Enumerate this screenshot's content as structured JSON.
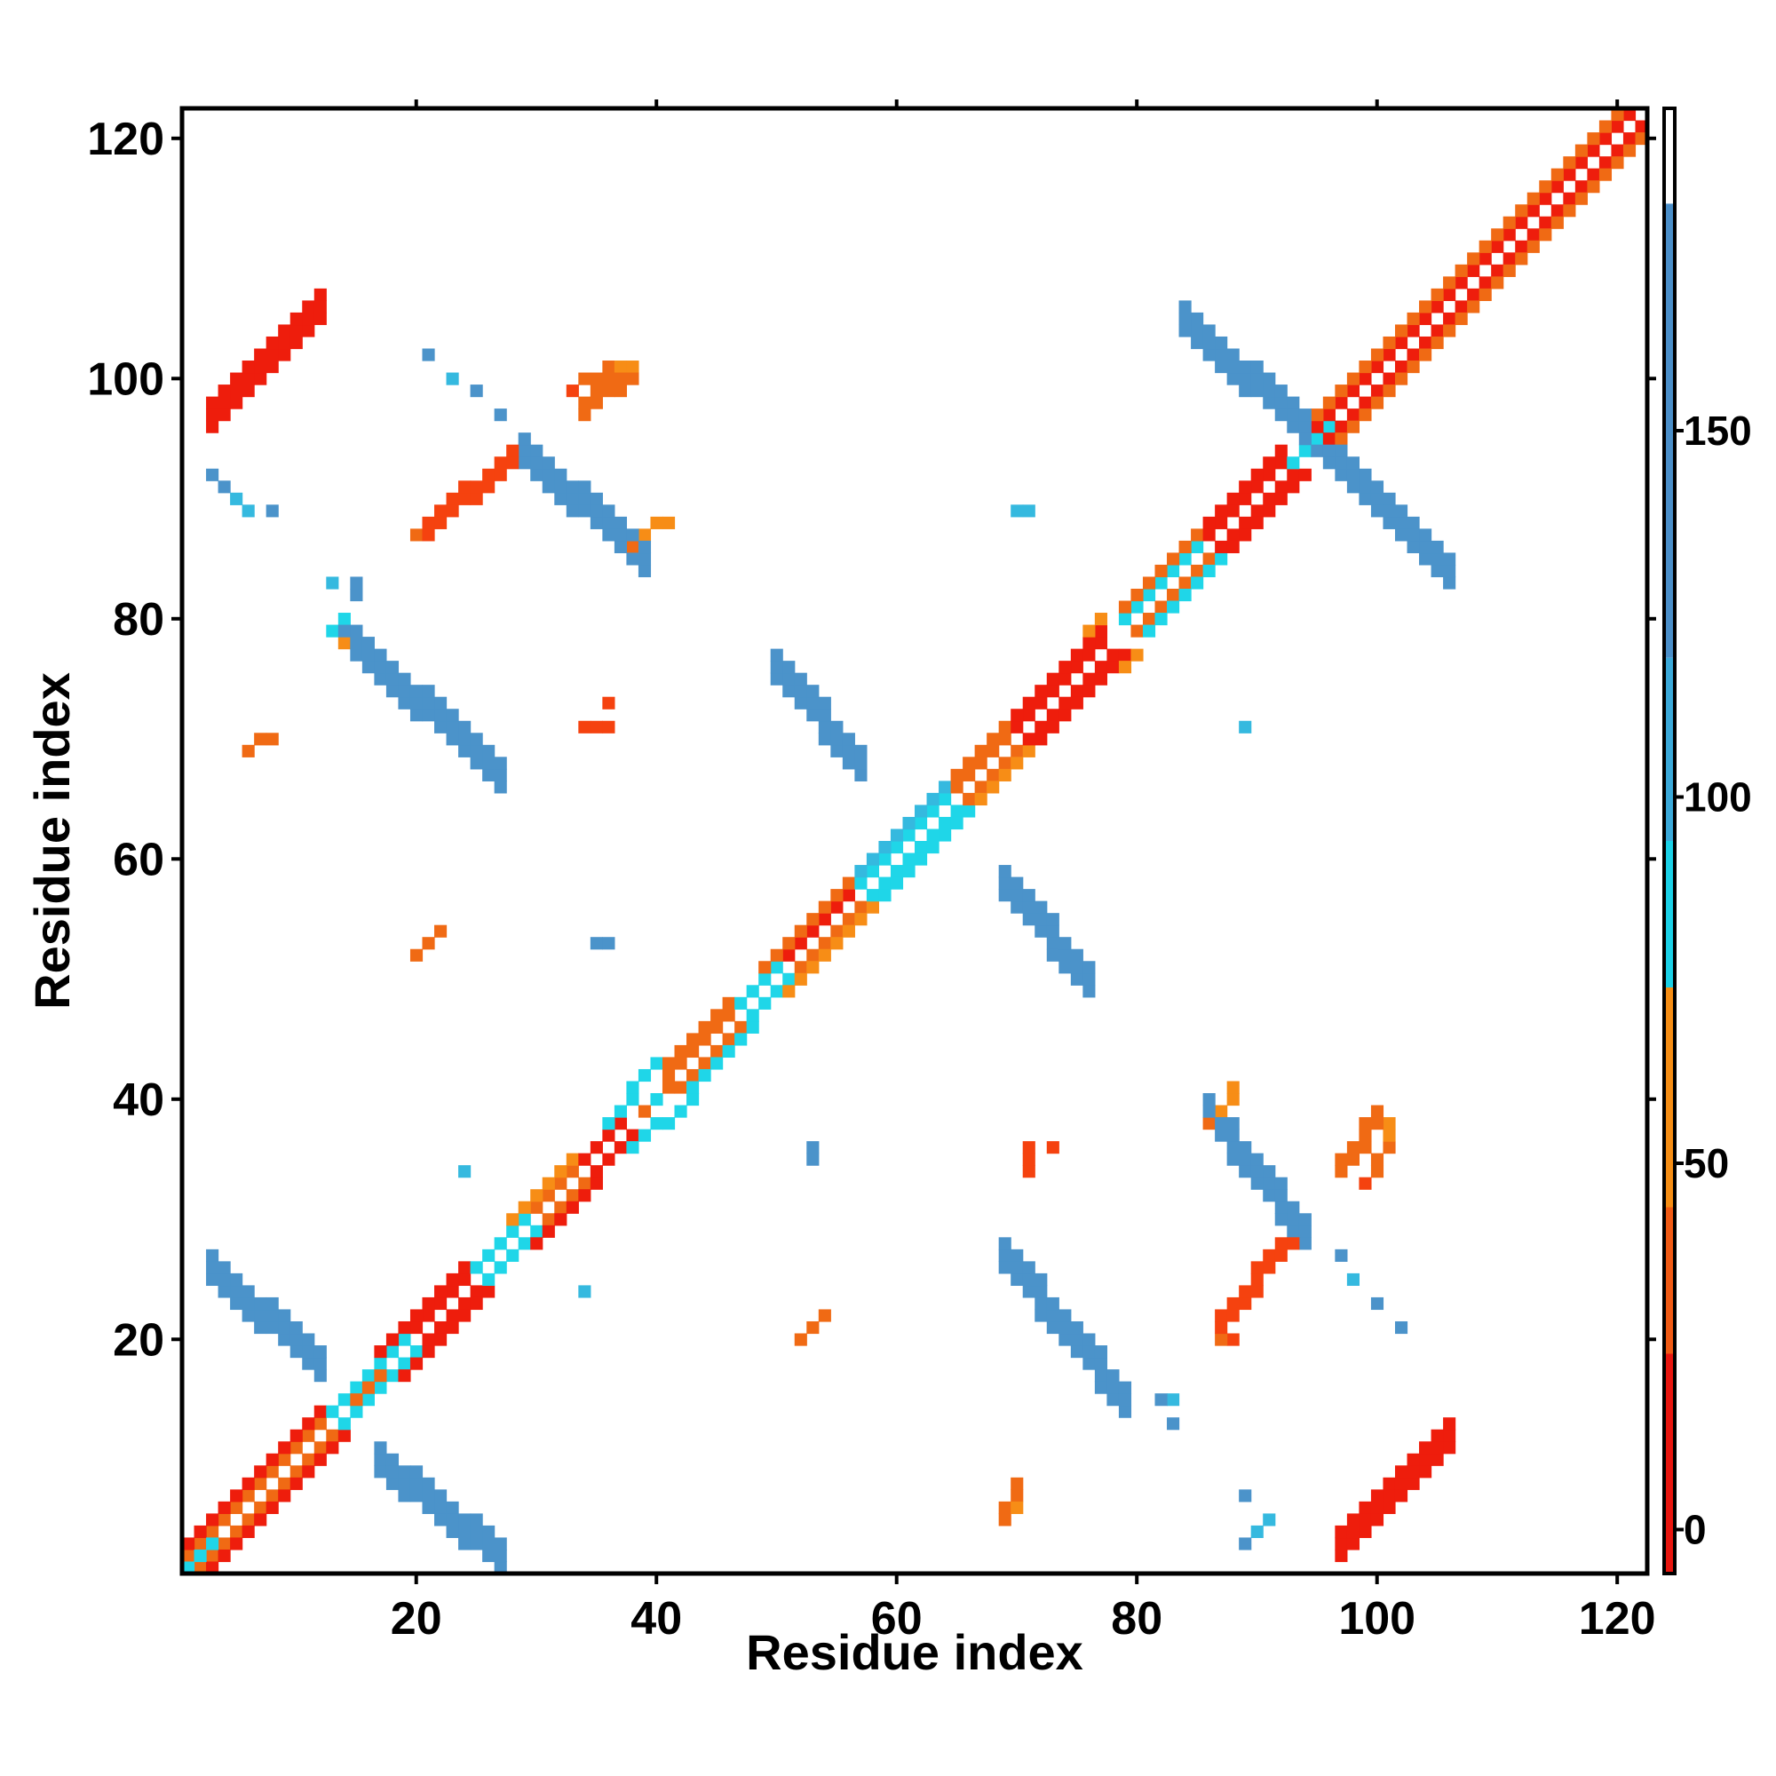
{
  "chart_data": {
    "type": "heatmap",
    "title": "",
    "xlabel": "Residue index",
    "ylabel": "Residue index",
    "xlim": [
      0.5,
      122.5
    ],
    "ylim": [
      0.5,
      122.5
    ],
    "x_ticks": [
      20,
      40,
      60,
      80,
      100,
      120
    ],
    "y_ticks": [
      20,
      40,
      60,
      80,
      100,
      120
    ],
    "colorbar": {
      "ticks": [
        0,
        50,
        100,
        150
      ],
      "range": [
        -6,
        194
      ],
      "bands": [
        {
          "from": -6,
          "to": 24,
          "color": "#e8160f"
        },
        {
          "from": 24,
          "to": 44,
          "color": "#f05a14"
        },
        {
          "from": 44,
          "to": 74,
          "color": "#f58d14"
        },
        {
          "from": 74,
          "to": 94,
          "color": "#1ad0e6"
        },
        {
          "from": 94,
          "to": 119,
          "color": "#3aa8d8"
        },
        {
          "from": 119,
          "to": 181,
          "color": "#4a8ec8"
        },
        {
          "from": 181,
          "to": 194,
          "color": "#ffffff"
        }
      ]
    },
    "category_colors": {
      "R": "#ee1d0c",
      "r": "#f5420f",
      "O": "#f06a14",
      "o": "#f78d16",
      "C": "#1fd6e8",
      "c": "#35b9df",
      "B": "#4b93ca"
    },
    "segments": [
      {
        "i": [
          1,
          12
        ],
        "j": [
          2,
          13
        ],
        "v": "O"
      },
      {
        "i": [
          1,
          12
        ],
        "j": [
          3,
          14
        ],
        "v": "R"
      },
      {
        "i": [
          2,
          13
        ],
        "j": [
          1,
          12
        ],
        "v": "O"
      },
      {
        "i": [
          3,
          14
        ],
        "j": [
          1,
          12
        ],
        "v": "R"
      },
      {
        "i": [
          1,
          3
        ],
        "j": [
          1,
          3
        ],
        "v": "C"
      },
      {
        "i": [
          13,
          19
        ],
        "j": [
          14,
          20
        ],
        "v": "C"
      },
      {
        "i": [
          14,
          20
        ],
        "j": [
          13,
          19
        ],
        "v": "C"
      },
      {
        "i": [
          15,
          17
        ],
        "j": [
          15,
          17
        ],
        "v": "O"
      },
      {
        "i": [
          17,
          24
        ],
        "j": [
          18,
          25
        ],
        "v": "R"
      },
      {
        "i": [
          17,
          24
        ],
        "j": [
          19,
          26
        ],
        "v": "R"
      },
      {
        "i": [
          18,
          25
        ],
        "j": [
          17,
          24
        ],
        "v": "R"
      },
      {
        "i": [
          19,
          26
        ],
        "j": [
          17,
          24
        ],
        "v": "R"
      },
      {
        "i": [
          25,
          29
        ],
        "j": [
          26,
          30
        ],
        "v": "C"
      },
      {
        "i": [
          26,
          30
        ],
        "j": [
          25,
          29
        ],
        "v": "C"
      },
      {
        "i": [
          28,
          33
        ],
        "j": [
          29,
          34
        ],
        "v": "O"
      },
      {
        "i": [
          28,
          33
        ],
        "j": [
          30,
          35
        ],
        "v": "o"
      },
      {
        "i": [
          29,
          34
        ],
        "j": [
          28,
          33
        ],
        "v": "O"
      },
      {
        "i": [
          30,
          35
        ],
        "j": [
          28,
          33
        ],
        "v": "R"
      },
      {
        "i": [
          33,
          37
        ],
        "j": [
          34,
          38
        ],
        "v": "R"
      },
      {
        "i": [
          34,
          38
        ],
        "j": [
          33,
          37
        ],
        "v": "R"
      },
      {
        "i": [
          36,
          40
        ],
        "j": [
          38,
          43
        ],
        "v": "C"
      },
      {
        "i": [
          38,
          43
        ],
        "j": [
          36,
          40
        ],
        "v": "C"
      },
      {
        "i": [
          39,
          41
        ],
        "j": [
          39,
          41
        ],
        "v": "O"
      },
      {
        "i": [
          41,
          46
        ],
        "j": [
          42,
          47
        ],
        "v": "O"
      },
      {
        "i": [
          41,
          46
        ],
        "j": [
          43,
          48
        ],
        "v": "O"
      },
      {
        "i": [
          42,
          47
        ],
        "j": [
          41,
          46
        ],
        "v": "O"
      },
      {
        "i": [
          43,
          48
        ],
        "j": [
          41,
          46
        ],
        "v": "C"
      },
      {
        "i": [
          47,
          50
        ],
        "j": [
          48,
          51
        ],
        "v": "C"
      },
      {
        "i": [
          48,
          51
        ],
        "j": [
          47,
          50
        ],
        "v": "C"
      },
      {
        "i": [
          49,
          56
        ],
        "j": [
          50,
          57
        ],
        "v": "R"
      },
      {
        "i": [
          49,
          56
        ],
        "j": [
          51,
          58
        ],
        "v": "O"
      },
      {
        "i": [
          50,
          57
        ],
        "j": [
          49,
          56
        ],
        "v": "O"
      },
      {
        "i": [
          51,
          58
        ],
        "j": [
          49,
          56
        ],
        "v": "o"
      },
      {
        "i": [
          57,
          64
        ],
        "j": [
          58,
          65
        ],
        "v": "C"
      },
      {
        "i": [
          57,
          64
        ],
        "j": [
          59,
          66
        ],
        "v": "c"
      },
      {
        "i": [
          58,
          65
        ],
        "j": [
          57,
          64
        ],
        "v": "C"
      },
      {
        "i": [
          59,
          66
        ],
        "j": [
          57,
          64
        ],
        "v": "C"
      },
      {
        "i": [
          64,
          69
        ],
        "j": [
          65,
          70
        ],
        "v": "O"
      },
      {
        "i": [
          64,
          69
        ],
        "j": [
          66,
          71
        ],
        "v": "O"
      },
      {
        "i": [
          65,
          70
        ],
        "j": [
          64,
          69
        ],
        "v": "O"
      },
      {
        "i": [
          66,
          71
        ],
        "j": [
          64,
          69
        ],
        "v": "o"
      },
      {
        "i": [
          69,
          77
        ],
        "j": [
          70,
          78
        ],
        "v": "R"
      },
      {
        "i": [
          69,
          77
        ],
        "j": [
          71,
          79
        ],
        "v": "R"
      },
      {
        "i": [
          70,
          78
        ],
        "j": [
          69,
          77
        ],
        "v": "R"
      },
      {
        "i": [
          71,
          79
        ],
        "j": [
          69,
          77
        ],
        "v": "R"
      },
      {
        "i": [
          75,
          77
        ],
        "j": [
          77,
          80
        ],
        "v": "o"
      },
      {
        "i": [
          77,
          80
        ],
        "j": [
          75,
          77
        ],
        "v": "o"
      },
      {
        "i": [
          79,
          85
        ],
        "j": [
          80,
          86
        ],
        "v": "C"
      },
      {
        "i": [
          79,
          85
        ],
        "j": [
          81,
          87
        ],
        "v": "O"
      },
      {
        "i": [
          80,
          86
        ],
        "j": [
          79,
          85
        ],
        "v": "O"
      },
      {
        "i": [
          81,
          87
        ],
        "j": [
          79,
          85
        ],
        "v": "C"
      },
      {
        "i": [
          85,
          92
        ],
        "j": [
          86,
          93
        ],
        "v": "R"
      },
      {
        "i": [
          85,
          92
        ],
        "j": [
          87,
          94
        ],
        "v": "R"
      },
      {
        "i": [
          86,
          93
        ],
        "j": [
          85,
          92
        ],
        "v": "R"
      },
      {
        "i": [
          87,
          94
        ],
        "j": [
          85,
          92
        ],
        "v": "R"
      },
      {
        "i": [
          93,
          96
        ],
        "j": [
          93,
          96
        ],
        "v": "C"
      },
      {
        "i": [
          95,
          121
        ],
        "j": [
          96,
          122
        ],
        "v": "R"
      },
      {
        "i": [
          95,
          120
        ],
        "j": [
          97,
          122
        ],
        "v": "O"
      },
      {
        "i": [
          96,
          122
        ],
        "j": [
          95,
          121
        ],
        "v": "R"
      },
      {
        "i": [
          97,
          122
        ],
        "j": [
          95,
          120
        ],
        "v": "O"
      },
      {
        "i": [
          3,
          12
        ],
        "j": [
          26,
          18
        ],
        "v": "B",
        "w": 3
      },
      {
        "i": [
          17,
          27
        ],
        "j": [
          10,
          2
        ],
        "v": "B",
        "w": 3
      },
      {
        "i": [
          14,
          27
        ],
        "j": [
          79,
          67
        ],
        "v": "B",
        "w": 3
      },
      {
        "i": [
          69,
          79
        ],
        "j": [
          27,
          15
        ],
        "v": "B",
        "w": 3
      },
      {
        "i": [
          29,
          39
        ],
        "j": [
          94,
          85
        ],
        "v": "B",
        "w": 3
      },
      {
        "i": [
          86,
          94
        ],
        "j": [
          39,
          29
        ],
        "v": "B",
        "w": 3
      },
      {
        "i": [
          50,
          57
        ],
        "j": [
          76,
          68
        ],
        "v": "B",
        "w": 3
      },
      {
        "i": [
          69,
          76
        ],
        "j": [
          58,
          50
        ],
        "v": "B",
        "w": 3
      },
      {
        "i": [
          84,
          95
        ],
        "j": [
          105,
          95
        ],
        "v": "B",
        "w": 3
      },
      {
        "i": [
          95,
          106
        ],
        "j": [
          95,
          84
        ],
        "v": "B",
        "w": 3
      },
      {
        "i": [
          3,
          12
        ],
        "j": [
          97,
          106
        ],
        "v": "R",
        "w": 3
      },
      {
        "i": [
          97,
          106
        ],
        "j": [
          3,
          12
        ],
        "v": "R",
        "w": 3
      },
      {
        "i": [
          21,
          28
        ],
        "j": [
          87,
          93
        ],
        "v": "r",
        "w": 2
      },
      {
        "i": [
          87,
          93
        ],
        "j": [
          21,
          28
        ],
        "v": "r",
        "w": 2
      },
      {
        "i": [
          97,
          100
        ],
        "j": [
          34,
          38
        ],
        "v": "O",
        "w": 2
      },
      {
        "i": [
          34,
          38
        ],
        "j": [
          97,
          100
        ],
        "v": "O",
        "w": 2
      }
    ],
    "cells": [
      {
        "i": 3,
        "j": 92,
        "v": "B"
      },
      {
        "i": 4,
        "j": 91,
        "v": "B"
      },
      {
        "i": 5,
        "j": 90,
        "v": "c"
      },
      {
        "i": 6,
        "j": 89,
        "v": "c"
      },
      {
        "i": 8,
        "j": 89,
        "v": "B"
      },
      {
        "i": 89,
        "j": 3,
        "v": "B"
      },
      {
        "i": 90,
        "j": 4,
        "v": "c"
      },
      {
        "i": 91,
        "j": 5,
        "v": "c"
      },
      {
        "i": 89,
        "j": 7,
        "v": "B"
      },
      {
        "i": 21,
        "j": 102,
        "v": "B"
      },
      {
        "i": 23,
        "j": 100,
        "v": "c"
      },
      {
        "i": 25,
        "j": 99,
        "v": "B"
      },
      {
        "i": 27,
        "j": 97,
        "v": "B"
      },
      {
        "i": 102,
        "j": 21,
        "v": "B"
      },
      {
        "i": 100,
        "j": 23,
        "v": "B"
      },
      {
        "i": 98,
        "j": 25,
        "v": "c"
      },
      {
        "i": 97,
        "j": 27,
        "v": "B"
      },
      {
        "i": 13,
        "j": 83,
        "v": "c"
      },
      {
        "i": 15,
        "j": 83,
        "v": "B"
      },
      {
        "i": 15,
        "j": 82,
        "v": "B"
      },
      {
        "i": 83,
        "j": 15,
        "v": "c"
      },
      {
        "i": 83,
        "j": 13,
        "v": "B"
      },
      {
        "i": 82,
        "j": 15,
        "v": "B"
      },
      {
        "i": 13,
        "j": 79,
        "v": "C"
      },
      {
        "i": 14,
        "j": 78,
        "v": "o"
      },
      {
        "i": 14,
        "j": 80,
        "v": "C"
      },
      {
        "i": 35,
        "j": 53,
        "v": "B"
      },
      {
        "i": 36,
        "j": 53,
        "v": "B"
      },
      {
        "i": 53,
        "j": 35,
        "v": "B"
      },
      {
        "i": 53,
        "j": 36,
        "v": "B"
      },
      {
        "i": 89,
        "j": 71,
        "v": "c"
      },
      {
        "i": 71,
        "j": 89,
        "v": "c"
      },
      {
        "i": 70,
        "j": 89,
        "v": "c"
      },
      {
        "i": 24,
        "j": 34,
        "v": "c"
      },
      {
        "i": 34,
        "j": 24,
        "v": "c"
      },
      {
        "i": 20,
        "j": 52,
        "v": "O"
      },
      {
        "i": 21,
        "j": 53,
        "v": "O"
      },
      {
        "i": 22,
        "j": 54,
        "v": "O"
      },
      {
        "i": 52,
        "j": 20,
        "v": "O"
      },
      {
        "i": 53,
        "j": 21,
        "v": "O"
      },
      {
        "i": 54,
        "j": 22,
        "v": "O"
      },
      {
        "i": 6,
        "j": 69,
        "v": "O"
      },
      {
        "i": 7,
        "j": 70,
        "v": "O"
      },
      {
        "i": 8,
        "j": 70,
        "v": "O"
      },
      {
        "i": 69,
        "j": 6,
        "v": "O"
      },
      {
        "i": 70,
        "j": 7,
        "v": "O"
      },
      {
        "i": 70,
        "j": 8,
        "v": "O"
      },
      {
        "i": 34,
        "j": 71,
        "v": "r"
      },
      {
        "i": 35,
        "j": 71,
        "v": "r"
      },
      {
        "i": 36,
        "j": 71,
        "v": "r"
      },
      {
        "i": 36,
        "j": 73,
        "v": "r"
      },
      {
        "i": 71,
        "j": 34,
        "v": "r"
      },
      {
        "i": 71,
        "j": 35,
        "v": "r"
      },
      {
        "i": 71,
        "j": 36,
        "v": "r"
      },
      {
        "i": 73,
        "j": 36,
        "v": "r"
      },
      {
        "i": 33,
        "j": 99,
        "v": "r"
      },
      {
        "i": 34,
        "j": 100,
        "v": "O"
      },
      {
        "i": 35,
        "j": 100,
        "v": "O"
      },
      {
        "i": 36,
        "j": 101,
        "v": "O"
      },
      {
        "i": 37,
        "j": 101,
        "v": "o"
      },
      {
        "i": 99,
        "j": 33,
        "v": "r"
      },
      {
        "i": 100,
        "j": 34,
        "v": "O"
      },
      {
        "i": 100,
        "j": 35,
        "v": "O"
      },
      {
        "i": 101,
        "j": 36,
        "v": "O"
      },
      {
        "i": 101,
        "j": 37,
        "v": "o"
      },
      {
        "i": 38,
        "j": 86,
        "v": "O"
      },
      {
        "i": 39,
        "j": 87,
        "v": "o"
      },
      {
        "i": 40,
        "j": 88,
        "v": "o"
      },
      {
        "i": 41,
        "j": 88,
        "v": "o"
      },
      {
        "i": 86,
        "j": 38,
        "v": "O"
      },
      {
        "i": 87,
        "j": 39,
        "v": "o"
      },
      {
        "i": 88,
        "j": 40,
        "v": "o"
      },
      {
        "i": 88,
        "j": 41,
        "v": "o"
      },
      {
        "i": 69,
        "j": 5,
        "v": "O"
      },
      {
        "i": 70,
        "j": 6,
        "v": "o"
      },
      {
        "i": 88,
        "j": 20,
        "v": "r"
      },
      {
        "i": 87,
        "j": 20,
        "v": "O"
      },
      {
        "i": 21,
        "j": 88,
        "v": "r"
      },
      {
        "i": 20,
        "j": 87,
        "v": "O"
      },
      {
        "i": 101,
        "j": 38,
        "v": "o"
      },
      {
        "i": 38,
        "j": 101,
        "v": "o"
      },
      {
        "i": 40,
        "j": 40,
        "v": "C"
      }
    ]
  }
}
